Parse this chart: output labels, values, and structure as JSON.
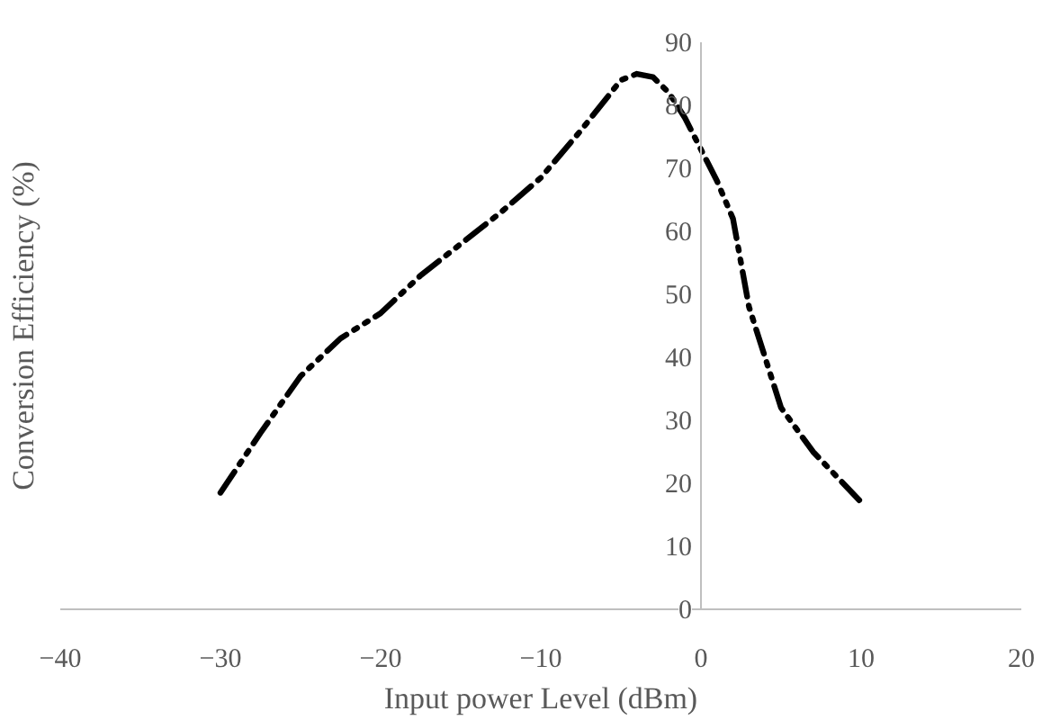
{
  "chart_data": {
    "type": "line",
    "xlabel": "Input power Level (dBm)",
    "ylabel": "Conversion Efficiency (%)",
    "x": [
      -30,
      -27.5,
      -25,
      -22.5,
      -20,
      -17.5,
      -15,
      -12.5,
      -10,
      -7.5,
      -5,
      -4,
      -3,
      -2,
      -1,
      0,
      1,
      2,
      3,
      4,
      5,
      7,
      10
    ],
    "series": [
      {
        "color": "#000000",
        "line_style": "dashdotdot",
        "values": [
          18.5,
          28,
          37,
          43,
          47,
          53,
          58,
          63,
          68.5,
          76,
          84,
          85,
          84.5,
          82,
          78,
          73,
          68,
          62,
          48,
          40,
          32,
          25,
          17
        ]
      }
    ],
    "xlim": [
      -40,
      20
    ],
    "xticks": [
      -40,
      -30,
      -20,
      -10,
      0,
      10,
      20
    ],
    "ylim": [
      0,
      90
    ],
    "yticks": [
      0,
      10,
      20,
      30,
      40,
      50,
      60,
      70,
      80,
      90
    ],
    "grid": false,
    "marker": "none"
  }
}
